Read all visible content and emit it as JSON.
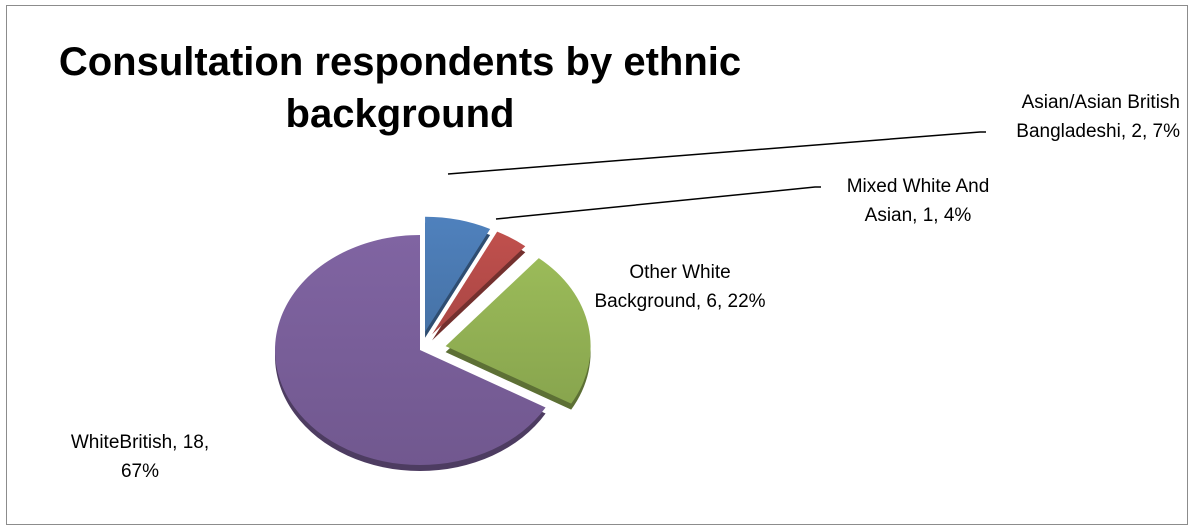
{
  "chart_data": {
    "type": "pie",
    "title": "Consultation respondents by ethnic background",
    "slices": [
      {
        "label": "Asian/Asian British Bangladeshi",
        "label_lines": [
          "Asian/Asian British",
          "Bangladeshi, 2, 7%"
        ],
        "value": 2,
        "percent": "7%",
        "color": "#4f81bd"
      },
      {
        "label": "Mixed White And Asian",
        "label_lines": [
          "Mixed White And",
          "Asian, 1, 4%"
        ],
        "value": 1,
        "percent": "4%",
        "color": "#c0504d"
      },
      {
        "label": "Other White Background",
        "label_lines": [
          "Other White",
          "Background, 6, 22%"
        ],
        "value": 6,
        "percent": "22%",
        "color": "#9bbb59"
      },
      {
        "label": "WhiteBritish",
        "label_lines": [
          "WhiteBritish, 18,",
          "67%"
        ],
        "value": 18,
        "percent": "67%",
        "color": "#8064a2"
      }
    ],
    "style": "exploded-3d-pie",
    "legend": "none"
  }
}
